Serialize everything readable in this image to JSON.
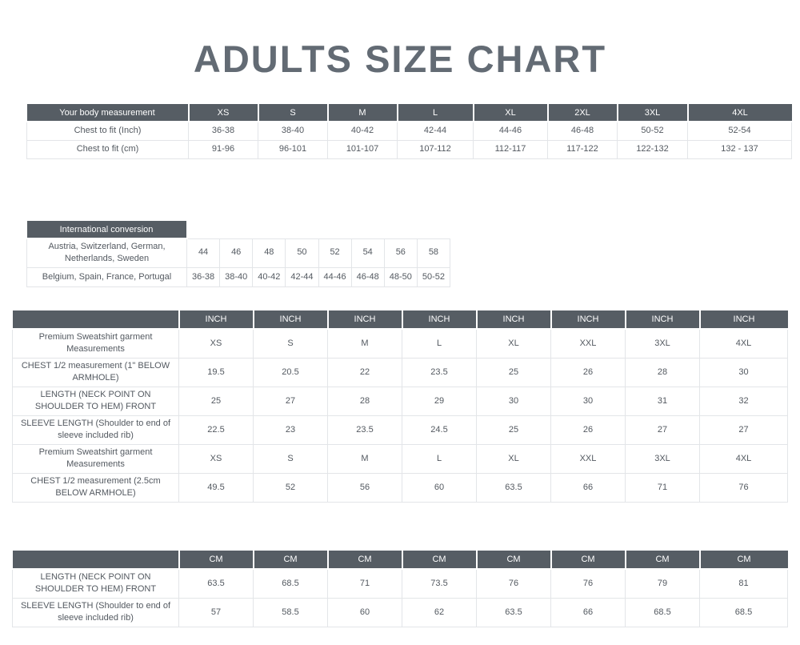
{
  "page": {
    "title": "ADULTS SIZE CHART"
  },
  "colors": {
    "background": "#ffffff",
    "title_text": "#636b74",
    "header_bg": "#565d64",
    "header_text": "#ffffff",
    "cell_text": "#535960",
    "border": "#e3e5e8"
  },
  "body_table": {
    "header": [
      "Your body measurement",
      "XS",
      "S",
      "M",
      "L",
      "XL",
      "2XL",
      "3XL",
      "4XL"
    ],
    "rows": [
      {
        "label": "Chest to fit (Inch)",
        "values": [
          "36-38",
          "38-40",
          "40-42",
          "42-44",
          "44-46",
          "46-48",
          "50-52",
          "52-54"
        ]
      },
      {
        "label": "Chest to fit (cm)",
        "values": [
          "91-96",
          "96-101",
          "101-107",
          "107-112",
          "112-117",
          "117-122",
          "122-132",
          "132 - 137"
        ]
      }
    ]
  },
  "conversion_table": {
    "header": "International conversion",
    "rows": [
      {
        "label": "Austria, Switzerland, German, Netherlands, Sweden",
        "values": [
          "44",
          "46",
          "48",
          "50",
          "52",
          "54",
          "56",
          "58"
        ]
      },
      {
        "label": "Belgium, Spain, France, Portugal",
        "values": [
          "36-38",
          "38-40",
          "40-42",
          "42-44",
          "44-46",
          "46-48",
          "48-50",
          "50-52"
        ]
      }
    ]
  },
  "inch_table": {
    "unit": "INCH",
    "rows": [
      {
        "label": "Premium Sweatshirt garment Measurements",
        "values": [
          "XS",
          "S",
          "M",
          "L",
          "XL",
          "XXL",
          "3XL",
          "4XL"
        ]
      },
      {
        "label": "CHEST 1/2 measurement (1\" BELOW ARMHOLE)",
        "values": [
          "19.5",
          "20.5",
          "22",
          "23.5",
          "25",
          "26",
          "28",
          "30"
        ]
      },
      {
        "label": "LENGTH (NECK POINT ON SHOULDER TO HEM) FRONT",
        "values": [
          "25",
          "27",
          "28",
          "29",
          "30",
          "30",
          "31",
          "32"
        ]
      },
      {
        "label": "SLEEVE LENGTH (Shoulder to end of sleeve included rib)",
        "values": [
          "22.5",
          "23",
          "23.5",
          "24.5",
          "25",
          "26",
          "27",
          "27"
        ]
      },
      {
        "label": "Premium Sweatshirt garment Measurements",
        "values": [
          "XS",
          "S",
          "M",
          "L",
          "XL",
          "XXL",
          "3XL",
          "4XL"
        ]
      },
      {
        "label": "CHEST 1/2 measurement (2.5cm BELOW ARMHOLE)",
        "values": [
          "49.5",
          "52",
          "56",
          "60",
          "63.5",
          "66",
          "71",
          "76"
        ]
      }
    ]
  },
  "cm_table": {
    "unit": "CM",
    "rows": [
      {
        "label": "LENGTH (NECK POINT ON SHOULDER TO HEM) FRONT",
        "values": [
          "63.5",
          "68.5",
          "71",
          "73.5",
          "76",
          "76",
          "79",
          "81"
        ]
      },
      {
        "label": "SLEEVE LENGTH (Shoulder to end of sleeve included rib)",
        "values": [
          "57",
          "58.5",
          "60",
          "62",
          "63.5",
          "66",
          "68.5",
          "68.5"
        ]
      }
    ]
  }
}
